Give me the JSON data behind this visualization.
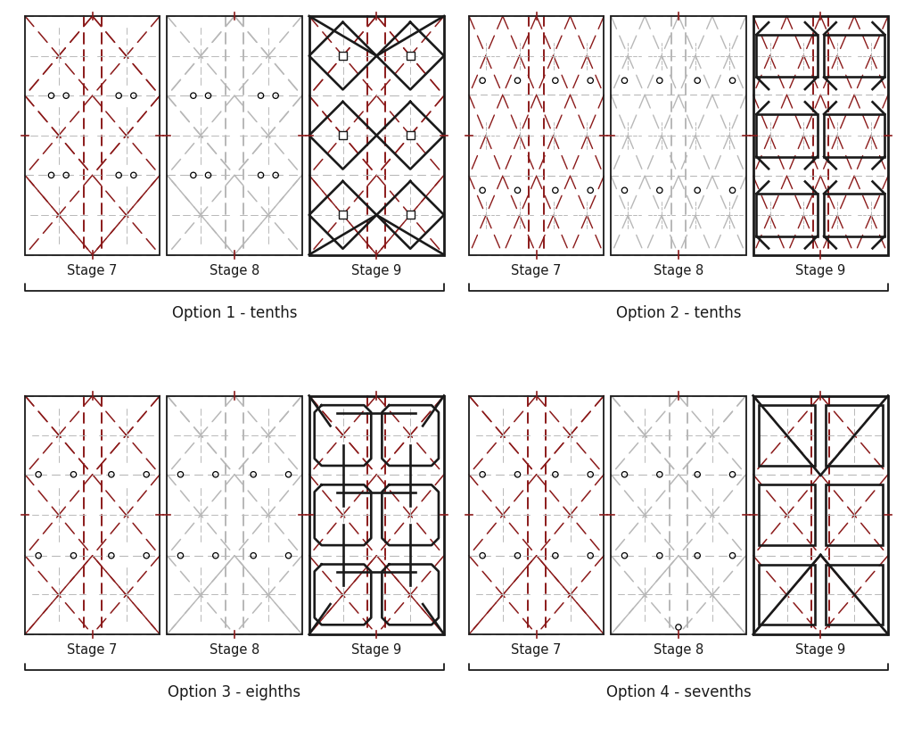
{
  "background": "#ffffff",
  "red": "#8B1A1A",
  "gray": "#b8b8b8",
  "black": "#1a1a1a",
  "stage_fontsize": 10.5,
  "option_fontsize": 12,
  "options": [
    {
      "label": "Option 1 - tenths",
      "row": 0,
      "col": 0
    },
    {
      "label": "Option 2 - tenths",
      "row": 0,
      "col": 1
    },
    {
      "label": "Option 3 - eighths",
      "row": 1,
      "col": 0
    },
    {
      "label": "Option 4 - sevenths",
      "row": 1,
      "col": 1
    }
  ],
  "stages": [
    "Stage 7",
    "Stage 8",
    "Stage 9"
  ]
}
